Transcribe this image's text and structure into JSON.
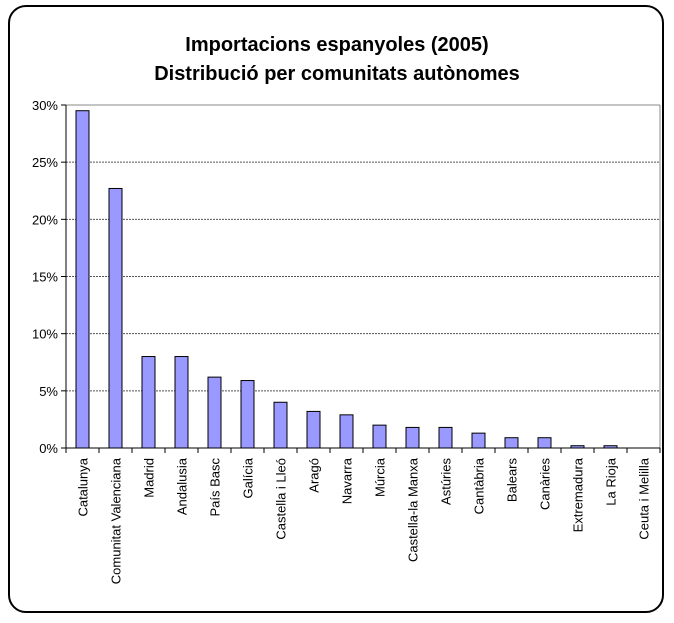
{
  "chart_data": {
    "type": "bar",
    "title_line1": "Importacions espanyoles (2005)",
    "title_line2": "Distribució per comunitats autònomes",
    "xlabel": "",
    "ylabel": "",
    "ylim": [
      0,
      30
    ],
    "y_ticks": [
      "0%",
      "5%",
      "10%",
      "15%",
      "20%",
      "25%",
      "30%"
    ],
    "grid": true,
    "bar_color": "#9999ff",
    "categories": [
      "Catalunya",
      "Comunitat Valenciana",
      "Madrid",
      "Andalusia",
      "País Basc",
      "Galícia",
      "Castella i Lleó",
      "Aragó",
      "Navarra",
      "Múrcia",
      "Castella-la Manxa",
      "Astúries",
      "Cantàbria",
      "Balears",
      "Canàries",
      "Extremadura",
      "La Rioja",
      "Ceuta i Melilla"
    ],
    "values": [
      29.5,
      22.7,
      8.0,
      8.0,
      6.2,
      5.9,
      4.0,
      3.2,
      2.9,
      2.0,
      1.8,
      1.8,
      1.3,
      0.9,
      0.9,
      0.2,
      0.2,
      0.0
    ]
  }
}
